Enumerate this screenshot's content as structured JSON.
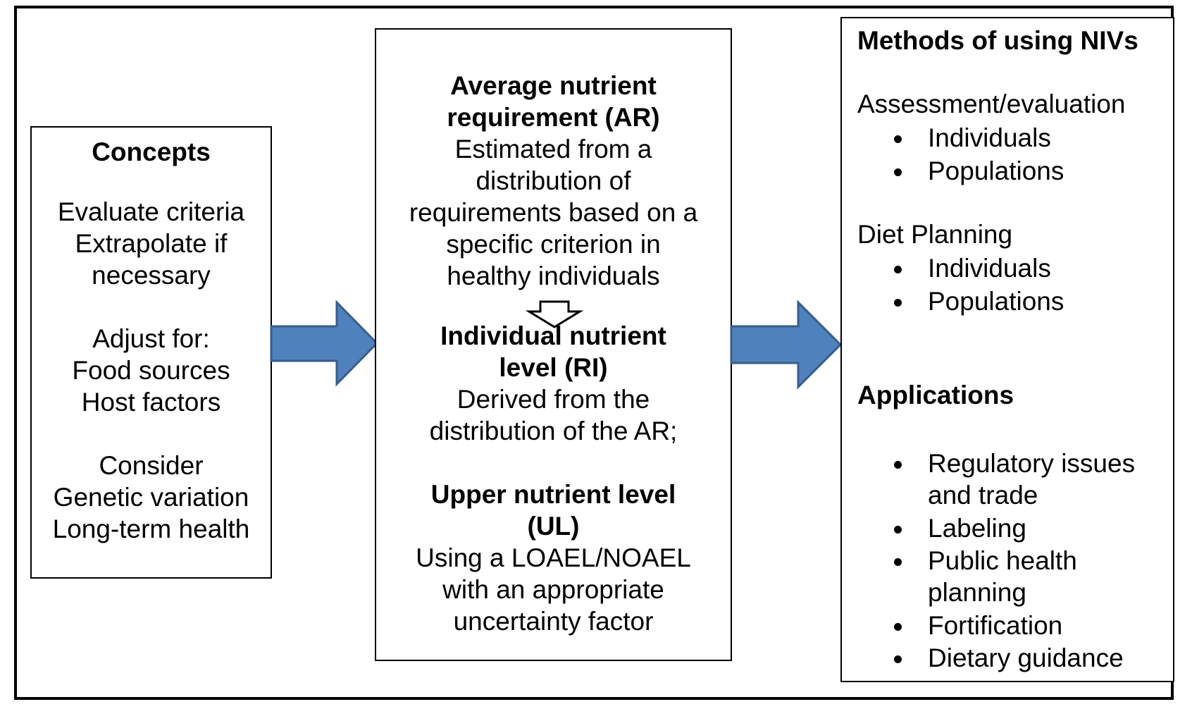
{
  "concepts": {
    "title": "Concepts",
    "line1": "Evaluate criteria",
    "line2": "Extrapolate if",
    "line3": "necessary",
    "line4": "Adjust for:",
    "line5": "Food sources",
    "line6": "Host factors",
    "line7": "Consider",
    "line8": "Genetic variation",
    "line9": "Long-term health"
  },
  "levels": {
    "ar_title_1": "Average nutrient",
    "ar_title_2": "requirement (AR)",
    "ar_desc_1": "Estimated from a",
    "ar_desc_2": "distribution of",
    "ar_desc_3": "requirements based on a",
    "ar_desc_4": "specific criterion in",
    "ar_desc_5": "healthy individuals",
    "ri_title_1": "Individual nutrient",
    "ri_title_2": "level (RI)",
    "ri_desc_1": "Derived from the",
    "ri_desc_2": "distribution of the AR;",
    "ul_title_1": "Upper nutrient level",
    "ul_title_2": "(UL)",
    "ul_desc_1": "Using a LOAEL/NOAEL",
    "ul_desc_2": "with an appropriate",
    "ul_desc_3": "uncertainty factor"
  },
  "methods": {
    "title": "Methods of using NIVs",
    "assessment": "Assessment/evaluation",
    "assessment_items": [
      "Individuals",
      "Populations"
    ],
    "diet": "Diet Planning",
    "diet_items": [
      "Individuals",
      "Populations"
    ],
    "applications": "Applications",
    "application_items": [
      "Regulatory issues",
      "and trade",
      "Labeling",
      "Public health",
      "planning",
      "Fortification",
      "Dietary guidance"
    ]
  },
  "colors": {
    "arrow_fill": "#4f81bd",
    "arrow_stroke": "#385d8a"
  }
}
